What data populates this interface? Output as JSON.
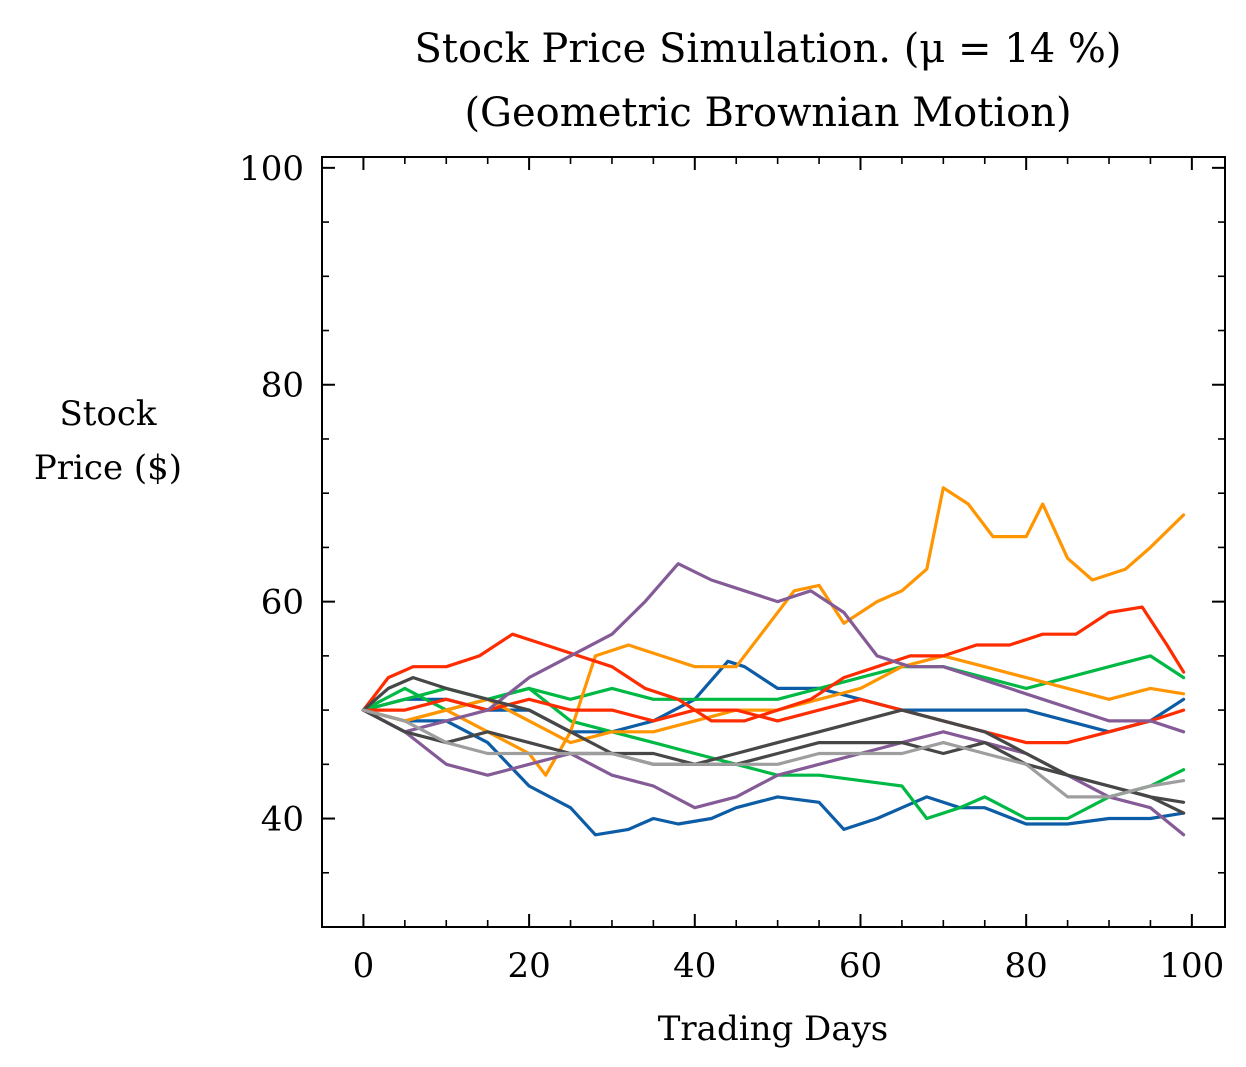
{
  "chart_data": {
    "type": "line",
    "title": "Stock Price Simulation. (μ = 14 %)",
    "subtitle": "(Geometric Brownian Motion)",
    "xlabel": "Trading Days",
    "ylabel_line1": "Stock",
    "ylabel_line2": "Price ($)",
    "xlim": [
      -5,
      104
    ],
    "ylim": [
      30,
      101
    ],
    "xticks": [
      0,
      20,
      40,
      60,
      80,
      100
    ],
    "xtick_labels": [
      "0",
      "20",
      "40",
      "60",
      "80",
      "100"
    ],
    "yticks": [
      40,
      60,
      80,
      100
    ],
    "ytick_labels": [
      "40",
      "60",
      "80",
      "100"
    ],
    "x_minor_step": 5,
    "y_minor_step": 5,
    "grid": false,
    "legend": "none",
    "series": [
      {
        "color": "#0C5DA5",
        "points": [
          [
            0,
            50
          ],
          [
            5,
            49
          ],
          [
            10,
            49
          ],
          [
            15,
            47
          ],
          [
            20,
            43
          ],
          [
            25,
            41
          ],
          [
            28,
            38.5
          ],
          [
            32,
            39
          ],
          [
            35,
            40
          ],
          [
            38,
            39.5
          ],
          [
            42,
            40
          ],
          [
            45,
            41
          ],
          [
            50,
            42
          ],
          [
            55,
            41.5
          ],
          [
            58,
            39
          ],
          [
            62,
            40
          ],
          [
            65,
            41
          ],
          [
            68,
            42
          ],
          [
            72,
            41
          ],
          [
            75,
            41
          ],
          [
            80,
            39.5
          ],
          [
            85,
            39.5
          ],
          [
            90,
            40
          ],
          [
            95,
            40
          ],
          [
            99,
            40.5
          ]
        ]
      },
      {
        "color": "#0C5DA5",
        "points": [
          [
            0,
            50
          ],
          [
            5,
            51
          ],
          [
            10,
            51
          ],
          [
            15,
            50
          ],
          [
            20,
            50
          ],
          [
            25,
            48
          ],
          [
            30,
            48
          ],
          [
            35,
            49
          ],
          [
            40,
            51
          ],
          [
            44,
            54.5
          ],
          [
            46,
            54
          ],
          [
            50,
            52
          ],
          [
            55,
            52
          ],
          [
            60,
            51
          ],
          [
            65,
            50
          ],
          [
            70,
            50
          ],
          [
            75,
            50
          ],
          [
            80,
            50
          ],
          [
            85,
            49
          ],
          [
            90,
            48
          ],
          [
            95,
            49
          ],
          [
            99,
            51
          ]
        ]
      },
      {
        "color": "#00B945",
        "points": [
          [
            0,
            50
          ],
          [
            5,
            51
          ],
          [
            10,
            52
          ],
          [
            15,
            51
          ],
          [
            20,
            52
          ],
          [
            25,
            49
          ],
          [
            30,
            48
          ],
          [
            35,
            47
          ],
          [
            40,
            46
          ],
          [
            45,
            45
          ],
          [
            50,
            44
          ],
          [
            55,
            44
          ],
          [
            60,
            43.5
          ],
          [
            65,
            43
          ],
          [
            68,
            40
          ],
          [
            72,
            41
          ],
          [
            75,
            42
          ],
          [
            80,
            40
          ],
          [
            85,
            40
          ],
          [
            90,
            42
          ],
          [
            95,
            43
          ],
          [
            99,
            44.5
          ]
        ]
      },
      {
        "color": "#00B945",
        "points": [
          [
            0,
            50
          ],
          [
            5,
            52
          ],
          [
            10,
            50
          ],
          [
            15,
            51
          ],
          [
            20,
            52
          ],
          [
            25,
            51
          ],
          [
            30,
            52
          ],
          [
            35,
            51
          ],
          [
            40,
            51
          ],
          [
            45,
            51
          ],
          [
            50,
            51
          ],
          [
            55,
            52
          ],
          [
            60,
            53
          ],
          [
            65,
            54
          ],
          [
            70,
            54
          ],
          [
            75,
            53
          ],
          [
            80,
            52
          ],
          [
            85,
            53
          ],
          [
            90,
            54
          ],
          [
            95,
            55
          ],
          [
            99,
            53
          ]
        ]
      },
      {
        "color": "#FF9500",
        "points": [
          [
            0,
            50
          ],
          [
            5,
            49
          ],
          [
            10,
            50
          ],
          [
            15,
            48
          ],
          [
            20,
            46
          ],
          [
            22,
            44
          ],
          [
            25,
            48
          ],
          [
            28,
            55
          ],
          [
            32,
            56
          ],
          [
            36,
            55
          ],
          [
            40,
            54
          ],
          [
            45,
            54
          ],
          [
            48,
            57
          ],
          [
            52,
            61
          ],
          [
            55,
            61.5
          ],
          [
            58,
            58
          ],
          [
            62,
            60
          ],
          [
            65,
            61
          ],
          [
            68,
            63
          ],
          [
            70,
            70.5
          ],
          [
            73,
            69
          ],
          [
            76,
            66
          ],
          [
            80,
            66
          ],
          [
            82,
            69
          ],
          [
            85,
            64
          ],
          [
            88,
            62
          ],
          [
            92,
            63
          ],
          [
            95,
            65
          ],
          [
            99,
            68
          ]
        ]
      },
      {
        "color": "#FF9500",
        "points": [
          [
            0,
            50
          ],
          [
            5,
            49
          ],
          [
            10,
            50
          ],
          [
            15,
            51
          ],
          [
            20,
            49
          ],
          [
            25,
            47
          ],
          [
            30,
            48
          ],
          [
            35,
            48
          ],
          [
            40,
            49
          ],
          [
            45,
            50
          ],
          [
            50,
            50
          ],
          [
            55,
            51
          ],
          [
            60,
            52
          ],
          [
            65,
            54
          ],
          [
            70,
            55
          ],
          [
            75,
            54
          ],
          [
            80,
            53
          ],
          [
            85,
            52
          ],
          [
            90,
            51
          ],
          [
            95,
            52
          ],
          [
            99,
            51.5
          ]
        ]
      },
      {
        "color": "#FF2C00",
        "points": [
          [
            0,
            50
          ],
          [
            3,
            53
          ],
          [
            6,
            54
          ],
          [
            10,
            54
          ],
          [
            14,
            55
          ],
          [
            18,
            57
          ],
          [
            22,
            56
          ],
          [
            26,
            55
          ],
          [
            30,
            54
          ],
          [
            34,
            52
          ],
          [
            38,
            51
          ],
          [
            42,
            49
          ],
          [
            46,
            49
          ],
          [
            50,
            50
          ],
          [
            54,
            51
          ],
          [
            58,
            53
          ],
          [
            62,
            54
          ],
          [
            66,
            55
          ],
          [
            70,
            55
          ],
          [
            74,
            56
          ],
          [
            78,
            56
          ],
          [
            82,
            57
          ],
          [
            86,
            57
          ],
          [
            90,
            59
          ],
          [
            94,
            59.5
          ],
          [
            97,
            56
          ],
          [
            99,
            53.5
          ]
        ]
      },
      {
        "color": "#FF2C00",
        "points": [
          [
            0,
            50
          ],
          [
            5,
            50
          ],
          [
            10,
            51
          ],
          [
            15,
            50
          ],
          [
            20,
            51
          ],
          [
            25,
            50
          ],
          [
            30,
            50
          ],
          [
            35,
            49
          ],
          [
            40,
            50
          ],
          [
            45,
            50
          ],
          [
            50,
            49
          ],
          [
            55,
            50
          ],
          [
            60,
            51
          ],
          [
            65,
            50
          ],
          [
            70,
            49
          ],
          [
            75,
            48
          ],
          [
            80,
            47
          ],
          [
            85,
            47
          ],
          [
            90,
            48
          ],
          [
            95,
            49
          ],
          [
            99,
            50
          ]
        ]
      },
      {
        "color": "#845B97",
        "points": [
          [
            0,
            50
          ],
          [
            5,
            48
          ],
          [
            10,
            49
          ],
          [
            15,
            50
          ],
          [
            20,
            53
          ],
          [
            25,
            55
          ],
          [
            30,
            57
          ],
          [
            34,
            60
          ],
          [
            38,
            63.5
          ],
          [
            42,
            62
          ],
          [
            46,
            61
          ],
          [
            50,
            60
          ],
          [
            54,
            61
          ],
          [
            58,
            59
          ],
          [
            62,
            55
          ],
          [
            66,
            54
          ],
          [
            70,
            54
          ],
          [
            74,
            53
          ],
          [
            78,
            52
          ],
          [
            82,
            51
          ],
          [
            86,
            50
          ],
          [
            90,
            49
          ],
          [
            95,
            49
          ],
          [
            99,
            48
          ]
        ]
      },
      {
        "color": "#845B97",
        "points": [
          [
            0,
            50
          ],
          [
            5,
            48
          ],
          [
            10,
            45
          ],
          [
            15,
            44
          ],
          [
            20,
            45
          ],
          [
            25,
            46
          ],
          [
            30,
            44
          ],
          [
            35,
            43
          ],
          [
            40,
            41
          ],
          [
            45,
            42
          ],
          [
            50,
            44
          ],
          [
            55,
            45
          ],
          [
            60,
            46
          ],
          [
            65,
            47
          ],
          [
            70,
            48
          ],
          [
            75,
            47
          ],
          [
            80,
            46
          ],
          [
            85,
            44
          ],
          [
            90,
            42
          ],
          [
            95,
            41
          ],
          [
            99,
            38.5
          ]
        ]
      },
      {
        "color": "#474747",
        "points": [
          [
            0,
            50
          ],
          [
            3,
            52
          ],
          [
            6,
            53
          ],
          [
            10,
            52
          ],
          [
            15,
            51
          ],
          [
            20,
            50
          ],
          [
            25,
            48
          ],
          [
            30,
            46
          ],
          [
            35,
            45
          ],
          [
            40,
            45
          ],
          [
            45,
            46
          ],
          [
            50,
            47
          ],
          [
            55,
            48
          ],
          [
            60,
            49
          ],
          [
            65,
            50
          ],
          [
            70,
            49
          ],
          [
            75,
            48
          ],
          [
            80,
            46
          ],
          [
            85,
            44
          ],
          [
            90,
            43
          ],
          [
            95,
            42
          ],
          [
            99,
            40.5
          ]
        ]
      },
      {
        "color": "#474747",
        "points": [
          [
            0,
            50
          ],
          [
            5,
            48
          ],
          [
            10,
            47
          ],
          [
            15,
            48
          ],
          [
            20,
            47
          ],
          [
            25,
            46
          ],
          [
            30,
            46
          ],
          [
            35,
            46
          ],
          [
            40,
            45
          ],
          [
            45,
            45
          ],
          [
            50,
            46
          ],
          [
            55,
            47
          ],
          [
            60,
            47
          ],
          [
            65,
            47
          ],
          [
            70,
            46
          ],
          [
            75,
            47
          ],
          [
            80,
            45
          ],
          [
            85,
            44
          ],
          [
            90,
            43
          ],
          [
            95,
            42
          ],
          [
            99,
            41.5
          ]
        ]
      },
      {
        "color": "#9E9E9E",
        "points": [
          [
            0,
            50
          ],
          [
            5,
            49
          ],
          [
            10,
            47
          ],
          [
            15,
            46
          ],
          [
            20,
            46
          ],
          [
            25,
            46
          ],
          [
            30,
            46
          ],
          [
            35,
            45
          ],
          [
            40,
            45
          ],
          [
            45,
            45
          ],
          [
            50,
            45
          ],
          [
            55,
            46
          ],
          [
            60,
            46
          ],
          [
            65,
            46
          ],
          [
            70,
            47
          ],
          [
            75,
            46
          ],
          [
            80,
            45
          ],
          [
            85,
            42
          ],
          [
            90,
            42
          ],
          [
            95,
            43
          ],
          [
            99,
            43.5
          ]
        ]
      }
    ]
  }
}
